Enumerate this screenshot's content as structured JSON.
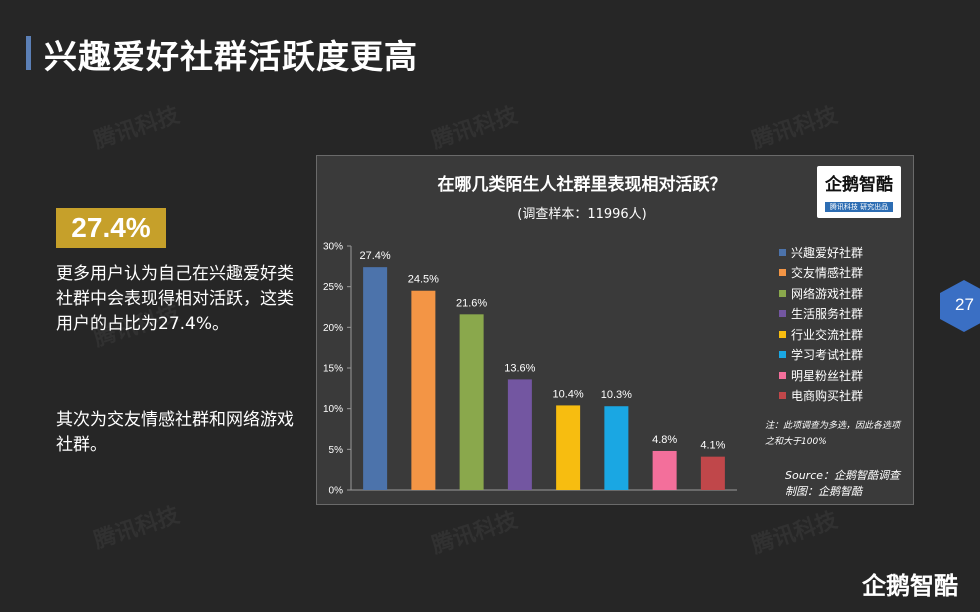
{
  "page": {
    "title": "兴趣爱好社群活跃度更高",
    "highlight": "27.4%",
    "paragraph1": "更多用户认为自己在兴趣爱好类社群中会表现得相对活跃，这类用户的占比为27.4%。",
    "paragraph2": "其次为交友情感社群和网络游戏社群。",
    "page_number": "27",
    "watermark": "腾讯科技",
    "footer_logo": "企鹅智酷",
    "accent_color": "#c6a02a",
    "title_bar_color": "#5b7fb5",
    "page_badge_color": "#3a6fc4"
  },
  "chart_logo": {
    "name": "企鹅智酷",
    "tagline": "腾讯科技 研究出品"
  },
  "chart_note": {
    "note": "注：此项调查为多选，因此各选项之和大于100%",
    "source": "Source：企鹅智酷调查",
    "maker": "制图：企鹅智酷"
  },
  "chart_data": {
    "type": "bar",
    "title": "在哪几类陌生人社群里表现相对活跃？",
    "subtitle": "(调查样本：11996人)",
    "categories": [
      "兴趣爱好社群",
      "交友情感社群",
      "网络游戏社群",
      "生活服务社群",
      "行业交流社群",
      "学习考试社群",
      "明星粉丝社群",
      "电商购买社群"
    ],
    "values": [
      27.4,
      24.5,
      21.6,
      13.6,
      10.4,
      10.3,
      4.8,
      4.1
    ],
    "labels": [
      "27.4%",
      "24.5%",
      "21.6%",
      "13.6%",
      "10.4%",
      "10.3%",
      "4.8%",
      "4.1%"
    ],
    "colors": [
      "#4c73ab",
      "#f39545",
      "#8aa84c",
      "#7356a1",
      "#f7bd10",
      "#1aa7e3",
      "#f36f9b",
      "#c0474a"
    ],
    "ylim": [
      0,
      30
    ],
    "yticks": [
      "0%",
      "5%",
      "10%",
      "15%",
      "20%",
      "25%",
      "30%"
    ],
    "legend_position": "right",
    "grid": false
  }
}
